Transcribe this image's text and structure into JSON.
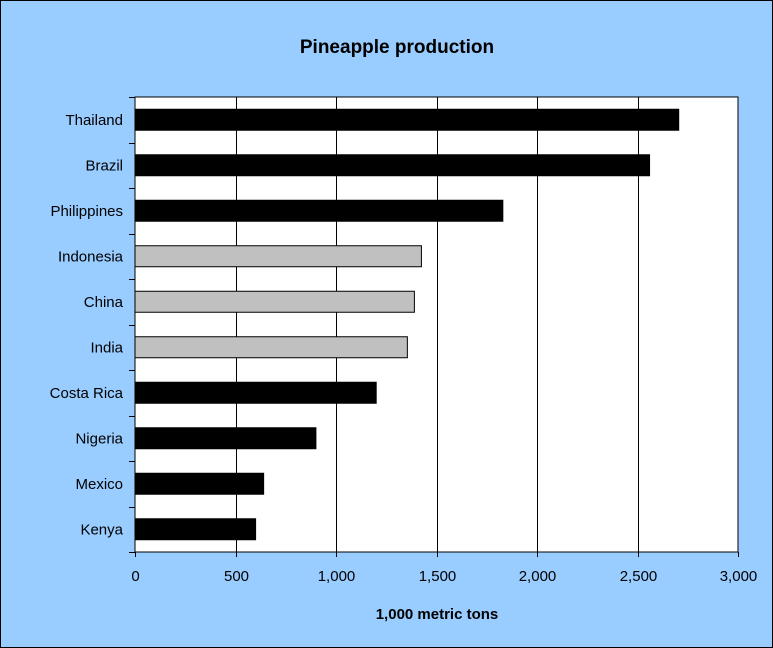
{
  "chart_data": {
    "type": "bar",
    "orientation": "horizontal",
    "title": "Pineapple production",
    "xlabel": "1,000 metric tons",
    "ylabel": "",
    "xlim": [
      0,
      3000
    ],
    "x_ticks": [
      "0",
      "500",
      "1,000",
      "1,500",
      "2,000",
      "2,500",
      "3,000"
    ],
    "categories": [
      "Thailand",
      "Brazil",
      "Philippines",
      "Indonesia",
      "China",
      "India",
      "Costa Rica",
      "Nigeria",
      "Mexico",
      "Kenya"
    ],
    "values": [
      2705,
      2560,
      1830,
      1425,
      1390,
      1355,
      1200,
      900,
      640,
      600
    ],
    "bar_colors": [
      "#000000",
      "#000000",
      "#000000",
      "#c0c0c0",
      "#c0c0c0",
      "#c0c0c0",
      "#000000",
      "#000000",
      "#000000",
      "#000000"
    ],
    "grid": "vertical",
    "legend": "none",
    "colors": {
      "background": "#99ccff",
      "plot_area": "#ffffff",
      "gridline": "#000000",
      "border": "#000000"
    }
  }
}
